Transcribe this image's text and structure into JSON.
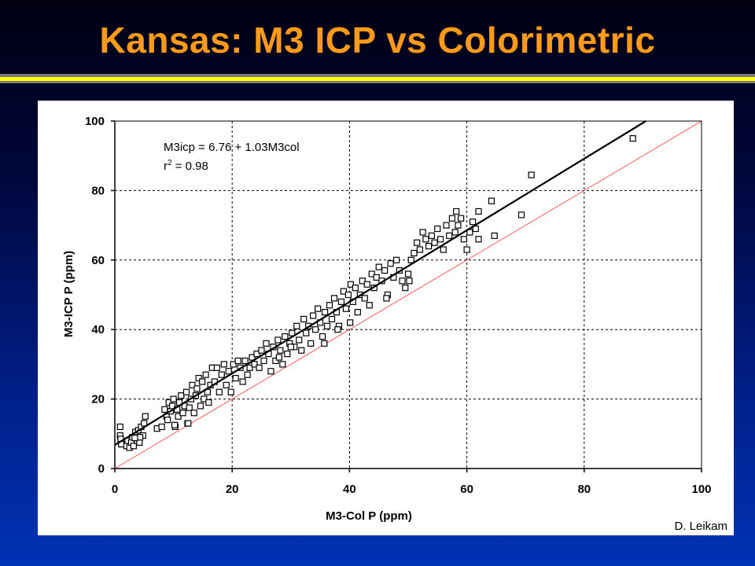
{
  "slide": {
    "title": "Kansas: M3 ICP vs Colorimetric",
    "credit": "D. Leikam"
  },
  "colors": {
    "title": "#ff9a1a",
    "accent_bar": "#ffff00",
    "one_to_one_line": "#ff5a5a",
    "fit_line": "#000000"
  },
  "chart_data": {
    "type": "scatter",
    "xlabel": "M3-Col P (ppm)",
    "ylabel": "M3-ICP P (ppm)",
    "xlim": [
      0,
      100
    ],
    "ylim": [
      0,
      100
    ],
    "x_ticks": [
      0,
      20,
      40,
      60,
      80,
      100
    ],
    "y_ticks": [
      0,
      20,
      40,
      60,
      80,
      100
    ],
    "grid": true,
    "equation_line1": "M3icp = 6.76 + 1.03M3col",
    "equation_r2_label": "r",
    "equation_r2_sup": "2",
    "equation_r2_value": " = 0.98",
    "fit": {
      "intercept": 6.76,
      "slope": 1.03
    },
    "reference_line": {
      "intercept": 0,
      "slope": 1
    },
    "series": [
      {
        "marker": "open-square",
        "points": [
          [
            0.9,
            12
          ],
          [
            0.9,
            9.5
          ],
          [
            1.0,
            8.5
          ],
          [
            1.1,
            7
          ],
          [
            2.0,
            6.5
          ],
          [
            2.2,
            8
          ],
          [
            2.5,
            6
          ],
          [
            2.8,
            7.5
          ],
          [
            3.0,
            9
          ],
          [
            3.2,
            6.5
          ],
          [
            3.5,
            10.5
          ],
          [
            3.8,
            8
          ],
          [
            4.0,
            11
          ],
          [
            4.2,
            7.5
          ],
          [
            4.5,
            12
          ],
          [
            4.8,
            9.5
          ],
          [
            5.0,
            13
          ],
          [
            5.2,
            15
          ],
          [
            4.3,
            9
          ],
          [
            3.4,
            8.8
          ],
          [
            7.2,
            11.5
          ],
          [
            8.0,
            12
          ],
          [
            8.5,
            17
          ],
          [
            8.8,
            15
          ],
          [
            9.0,
            14
          ],
          [
            9.2,
            19
          ],
          [
            9.5,
            16.5
          ],
          [
            9.8,
            18
          ],
          [
            10.0,
            20
          ],
          [
            10.3,
            12
          ],
          [
            10.6,
            17
          ],
          [
            10.8,
            15
          ],
          [
            11.0,
            19
          ],
          [
            11.3,
            21
          ],
          [
            11.6,
            16
          ],
          [
            11.9,
            18
          ],
          [
            12.2,
            22
          ],
          [
            12.4,
            13
          ],
          [
            12.7,
            17.5
          ],
          [
            13.0,
            20
          ],
          [
            13.2,
            24
          ],
          [
            13.5,
            16
          ],
          [
            13.8,
            21
          ],
          [
            14.0,
            23
          ],
          [
            14.3,
            26
          ],
          [
            14.6,
            18
          ],
          [
            14.9,
            25
          ],
          [
            15.2,
            20
          ],
          [
            15.5,
            27
          ],
          [
            15.8,
            22
          ],
          [
            16.0,
            19
          ],
          [
            16.3,
            24
          ],
          [
            16.6,
            29
          ],
          [
            17.0,
            25
          ],
          [
            17.4,
            29
          ],
          [
            17.8,
            22
          ],
          [
            18.2,
            27
          ],
          [
            18.6,
            30
          ],
          [
            19.0,
            24
          ],
          [
            19.4,
            28
          ],
          [
            19.8,
            22
          ],
          [
            20.2,
            30
          ],
          [
            20.6,
            26
          ],
          [
            21.0,
            31
          ],
          [
            21.4,
            29
          ],
          [
            21.8,
            25
          ],
          [
            22.2,
            31
          ],
          [
            22.6,
            27
          ],
          [
            23.0,
            29
          ],
          [
            23.4,
            32
          ],
          [
            23.8,
            30
          ],
          [
            24.2,
            33
          ],
          [
            24.6,
            29
          ],
          [
            25.0,
            34
          ],
          [
            25.4,
            31
          ],
          [
            25.8,
            36
          ],
          [
            26.2,
            33
          ],
          [
            26.6,
            28
          ],
          [
            27.0,
            35
          ],
          [
            27.4,
            31
          ],
          [
            27.8,
            37
          ],
          [
            28.2,
            34
          ],
          [
            28.6,
            30
          ],
          [
            29.0,
            38
          ],
          [
            29.4,
            33
          ],
          [
            29.8,
            36
          ],
          [
            30.2,
            39
          ],
          [
            30.6,
            35
          ],
          [
            31.0,
            41
          ],
          [
            31.4,
            37
          ],
          [
            31.8,
            34
          ],
          [
            32.2,
            43
          ],
          [
            32.6,
            39
          ],
          [
            33.0,
            41
          ],
          [
            33.4,
            36
          ],
          [
            33.8,
            44
          ],
          [
            34.2,
            40
          ],
          [
            34.6,
            46
          ],
          [
            35.0,
            42
          ],
          [
            35.4,
            38
          ],
          [
            35.8,
            45
          ],
          [
            36.2,
            41
          ],
          [
            36.6,
            47
          ],
          [
            37.0,
            43
          ],
          [
            37.4,
            49
          ],
          [
            37.8,
            45
          ],
          [
            38.2,
            41
          ],
          [
            38.6,
            48
          ],
          [
            39.0,
            51
          ],
          [
            39.4,
            46
          ],
          [
            39.8,
            50
          ],
          [
            40.2,
            53
          ],
          [
            40.6,
            48
          ],
          [
            41.0,
            52
          ],
          [
            41.4,
            45
          ],
          [
            41.8,
            50
          ],
          [
            42.2,
            54
          ],
          [
            42.6,
            49
          ],
          [
            43.0,
            53
          ],
          [
            43.4,
            47
          ],
          [
            43.8,
            56
          ],
          [
            44.2,
            52
          ],
          [
            44.6,
            55
          ],
          [
            45.0,
            58
          ],
          [
            45.5,
            54
          ],
          [
            46.0,
            57
          ],
          [
            46.5,
            50
          ],
          [
            47.0,
            59
          ],
          [
            47.5,
            55
          ],
          [
            48.0,
            60
          ],
          [
            48.5,
            57
          ],
          [
            49.0,
            54
          ],
          [
            49.5,
            52
          ],
          [
            50.0,
            56
          ],
          [
            50.5,
            60
          ],
          [
            51.0,
            62
          ],
          [
            51.5,
            65
          ],
          [
            52.0,
            63
          ],
          [
            52.5,
            68
          ],
          [
            53.0,
            66
          ],
          [
            53.5,
            64
          ],
          [
            54.0,
            67
          ],
          [
            54.5,
            65
          ],
          [
            55.0,
            69
          ],
          [
            55.5,
            66
          ],
          [
            56.0,
            63
          ],
          [
            56.5,
            70
          ],
          [
            57.0,
            67
          ],
          [
            57.5,
            72
          ],
          [
            58.0,
            68
          ],
          [
            58.5,
            70
          ],
          [
            59.0,
            72
          ],
          [
            59.5,
            66
          ],
          [
            60.0,
            63
          ],
          [
            60.5,
            68
          ],
          [
            61.0,
            71
          ],
          [
            61.5,
            69
          ],
          [
            62.0,
            74
          ],
          [
            58.2,
            74
          ],
          [
            62.0,
            66
          ],
          [
            64.2,
            77
          ],
          [
            64.7,
            67
          ],
          [
            69.3,
            73
          ],
          [
            71.0,
            84.5
          ],
          [
            88.3,
            95
          ],
          [
            38.0,
            40
          ],
          [
            35.7,
            36
          ],
          [
            40.1,
            42
          ],
          [
            46.3,
            49
          ],
          [
            50.2,
            54
          ],
          [
            12.5,
            13
          ],
          [
            10.2,
            12.5
          ],
          [
            30.0,
            35
          ],
          [
            28.0,
            32
          ]
        ]
      }
    ]
  }
}
